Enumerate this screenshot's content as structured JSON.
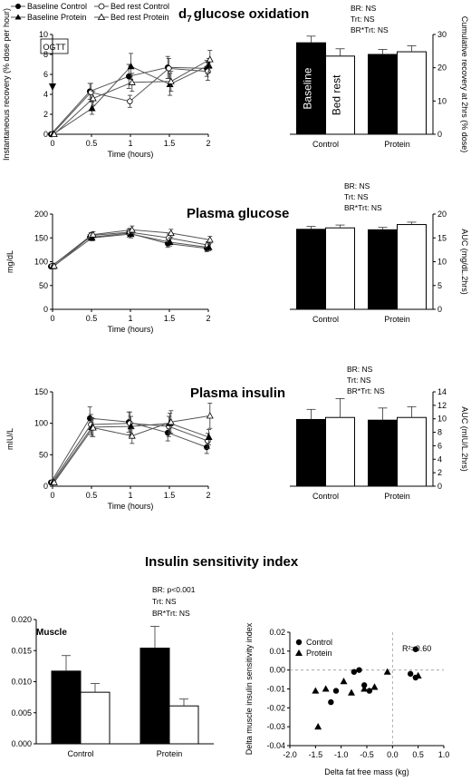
{
  "titles": {
    "d7": "glucose oxidation",
    "d7_prefix": "d",
    "d7_sub": "7",
    "glucose": "Plasma glucose",
    "insulin": "Plasma insulin",
    "isi": "Insulin sensitivity index"
  },
  "legend": {
    "baseline_control": "Baseline Control",
    "bedrest_control": "Bed rest Control",
    "baseline_protein": "Baseline Protein",
    "bedrest_protein": "Bed rest Protein"
  },
  "stats": {
    "d7": [
      "BR: NS",
      "Trt: NS",
      "BR*Trt: NS"
    ],
    "glucose": [
      "BR: NS",
      "Trt: NS",
      "BR*Trt: NS"
    ],
    "insulin": [
      "BR: NS",
      "Trt: NS",
      "BR*Trt: NS"
    ],
    "isi": [
      "BR: p<0.001",
      "Trt: NS",
      "BR*Trt: NS"
    ]
  },
  "ogtt_label": "OGTT",
  "bar_in_labels": {
    "baseline": "Baseline",
    "bedrest": "Bed rest"
  },
  "muscle_label": "Muscle",
  "r2_label": "R²=0.60",
  "chart_data": [
    {
      "id": "d7_line",
      "type": "line",
      "x": [
        0,
        0.5,
        1,
        1.5,
        2
      ],
      "xlabel": "Time (hours)",
      "ylabel": "Instantaneous recovery (% dose per hour)",
      "xticks": [
        "0",
        "0.5",
        "1",
        "1.5",
        "2"
      ],
      "yticks": [
        "0",
        "2",
        "4",
        "6",
        "8",
        "10"
      ],
      "ylim": [
        0,
        10
      ],
      "series": [
        {
          "name": "Baseline Control",
          "values": [
            0,
            4.3,
            5.8,
            6.7,
            6.6
          ],
          "err": [
            0,
            0.8,
            1.2,
            1.1,
            0.8
          ]
        },
        {
          "name": "Bed rest Control",
          "values": [
            0,
            4.2,
            3.3,
            6.6,
            6.3
          ],
          "err": [
            0,
            0.9,
            0.6,
            1.0,
            0.9
          ]
        },
        {
          "name": "Baseline Protein",
          "values": [
            0,
            2.6,
            6.8,
            5.0,
            6.9
          ],
          "err": [
            0,
            0.6,
            1.3,
            1.1,
            0.7
          ]
        },
        {
          "name": "Bed rest Protein",
          "values": [
            0,
            3.6,
            5.2,
            5.3,
            7.5
          ],
          "err": [
            0,
            0.7,
            0.9,
            1.0,
            0.9
          ]
        }
      ]
    },
    {
      "id": "d7_bar",
      "type": "bar",
      "categories": [
        "Control",
        "Protein"
      ],
      "ylabel": "Cumulative recovery at 2hrs (% dose)",
      "yticks": [
        "0",
        "10",
        "20",
        "30"
      ],
      "ylim": [
        0,
        30
      ],
      "series": [
        {
          "name": "Baseline",
          "values": [
            27.5,
            24.0
          ],
          "err": [
            2.0,
            1.5
          ]
        },
        {
          "name": "Bed rest",
          "values": [
            23.5,
            24.8
          ],
          "err": [
            2.2,
            1.8
          ]
        }
      ]
    },
    {
      "id": "glucose_line",
      "type": "line",
      "x": [
        0,
        0.5,
        1,
        1.5,
        2
      ],
      "xlabel": "Time (hours)",
      "ylabel": "mg/dL",
      "xticks": [
        "0",
        "0.5",
        "1",
        "1.5",
        "2"
      ],
      "yticks": [
        "0",
        "50",
        "100",
        "150",
        "200"
      ],
      "ylim": [
        0,
        200
      ],
      "series": [
        {
          "name": "Baseline Control",
          "values": [
            90,
            151,
            160,
            138,
            128
          ],
          "err": [
            3,
            6,
            8,
            8,
            7
          ]
        },
        {
          "name": "Bed rest Control",
          "values": [
            91,
            155,
            162,
            150,
            135
          ],
          "err": [
            3,
            6,
            8,
            8,
            7
          ]
        },
        {
          "name": "Baseline Protein",
          "values": [
            90,
            150,
            158,
            141,
            130
          ],
          "err": [
            3,
            6,
            8,
            8,
            7
          ]
        },
        {
          "name": "Bed rest Protein",
          "values": [
            91,
            157,
            167,
            160,
            146
          ],
          "err": [
            3,
            6,
            8,
            8,
            7
          ]
        }
      ]
    },
    {
      "id": "glucose_bar",
      "type": "bar",
      "categories": [
        "Control",
        "Protein"
      ],
      "ylabel": "AUC (mg/dL.2hrs)",
      "yticks": [
        "0",
        "5",
        "10",
        "15",
        "20"
      ],
      "ylim": [
        0,
        20
      ],
      "series": [
        {
          "name": "Baseline",
          "values": [
            16.8,
            16.7
          ],
          "err": [
            0.6,
            0.5
          ]
        },
        {
          "name": "Bed rest",
          "values": [
            17.1,
            17.8
          ],
          "err": [
            0.6,
            0.5
          ]
        }
      ]
    },
    {
      "id": "insulin_line",
      "type": "line",
      "x": [
        0,
        0.5,
        1,
        1.5,
        2
      ],
      "xlabel": "Time (hours)",
      "ylabel": "mIU/L",
      "xticks": [
        "0",
        "0.5",
        "1",
        "1.5",
        "2"
      ],
      "yticks": [
        "0",
        "50",
        "100",
        "150"
      ],
      "ylim": [
        0,
        150
      ],
      "series": [
        {
          "name": "Baseline Control",
          "values": [
            6,
            108,
            102,
            85,
            62
          ],
          "err": [
            1,
            18,
            16,
            13,
            10
          ]
        },
        {
          "name": "Bed rest Control",
          "values": [
            6,
            98,
            100,
            95,
            72
          ],
          "err": [
            1,
            16,
            18,
            16,
            12
          ]
        },
        {
          "name": "Baseline Protein",
          "values": [
            6,
            94,
            95,
            100,
            78
          ],
          "err": [
            1,
            15,
            16,
            16,
            12
          ]
        },
        {
          "name": "Bed rest Protein",
          "values": [
            6,
            93,
            80,
            102,
            112
          ],
          "err": [
            1,
            14,
            12,
            18,
            20
          ]
        }
      ]
    },
    {
      "id": "insulin_bar",
      "type": "bar",
      "categories": [
        "Control",
        "Protein"
      ],
      "ylabel": "AUC (mIU/L.2hrs)",
      "yticks": [
        "0",
        "2",
        "4",
        "6",
        "8",
        "10",
        "12",
        "14"
      ],
      "ylim": [
        0,
        14
      ],
      "series": [
        {
          "name": "Baseline",
          "values": [
            9.9,
            9.8
          ],
          "err": [
            1.5,
            1.8
          ]
        },
        {
          "name": "Bed rest",
          "values": [
            10.2,
            10.2
          ],
          "err": [
            2.8,
            1.6
          ]
        }
      ]
    },
    {
      "id": "isi_bar",
      "type": "bar",
      "categories": [
        "Control",
        "Protein"
      ],
      "yticks": [
        "0.000",
        "0.005",
        "0.010",
        "0.015",
        "0.020"
      ],
      "ylim": [
        0,
        0.02
      ],
      "series": [
        {
          "name": "Baseline",
          "values": [
            0.0117,
            0.0154
          ],
          "err": [
            0.0025,
            0.0035
          ]
        },
        {
          "name": "Bed rest",
          "values": [
            0.0083,
            0.0061
          ],
          "err": [
            0.0014,
            0.0011
          ]
        }
      ]
    },
    {
      "id": "isi_scatter",
      "type": "scatter",
      "xlabel": "Delta fat free mass (kg)",
      "ylabel": "Delta muscle insulin sensitivity index",
      "xticks": [
        "-2.0",
        "-1.5",
        "-1.0",
        "-0.5",
        "0.0",
        "0.5",
        "1.0"
      ],
      "yticks": [
        "-0.04",
        "-0.03",
        "-0.02",
        "-0.01",
        "0.00",
        "0.01",
        "0.02"
      ],
      "xlim": [
        -2,
        1
      ],
      "ylim": [
        -0.04,
        0.02
      ],
      "series": [
        {
          "name": "Control",
          "points": [
            [
              -1.2,
              -0.017
            ],
            [
              -1.1,
              -0.011
            ],
            [
              -0.75,
              -0.001
            ],
            [
              -0.65,
              0.0
            ],
            [
              -0.55,
              -0.008
            ],
            [
              -0.45,
              -0.011
            ],
            [
              0.35,
              -0.002
            ],
            [
              0.45,
              -0.004
            ],
            [
              0.45,
              0.011
            ]
          ]
        },
        {
          "name": "Protein",
          "points": [
            [
              -1.5,
              -0.011
            ],
            [
              -1.45,
              -0.03
            ],
            [
              -1.3,
              -0.01
            ],
            [
              -0.95,
              -0.006
            ],
            [
              -0.8,
              -0.012
            ],
            [
              -0.55,
              -0.01
            ],
            [
              -0.35,
              -0.009
            ],
            [
              -0.1,
              -0.001
            ],
            [
              0.5,
              -0.003
            ]
          ]
        }
      ]
    }
  ]
}
